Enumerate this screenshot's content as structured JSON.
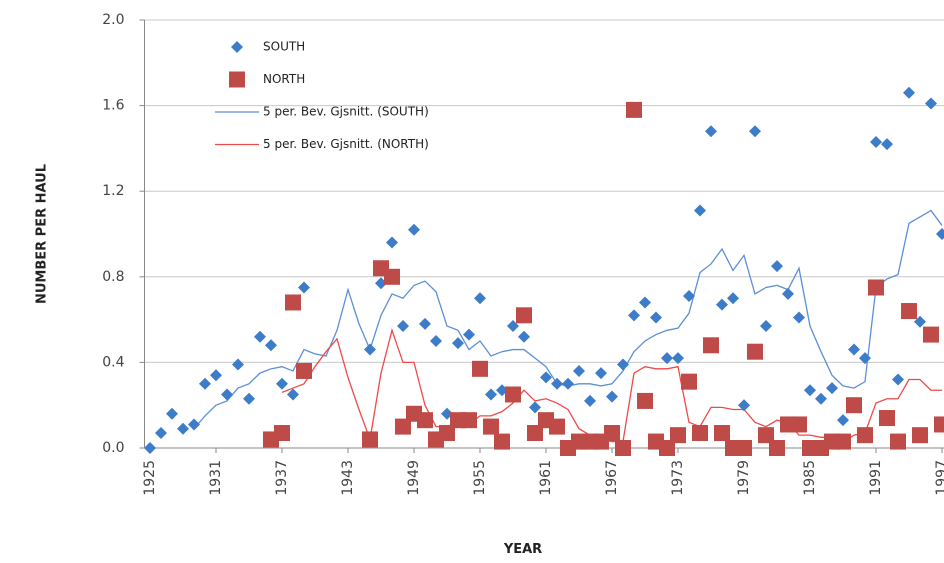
{
  "chart_data": {
    "type": "scatter",
    "x_label": "YEAR",
    "y_label": "NUMBER PER HAUL",
    "xlim": [
      1924.5,
      2000
    ],
    "ylim": [
      0,
      2
    ],
    "xticks": [
      1925,
      1931,
      1937,
      1943,
      1949,
      1955,
      1961,
      1967,
      1973,
      1979,
      1985,
      1991,
      1997
    ],
    "yticks": [
      {
        "value": 0,
        "label": "0.0"
      },
      0.4,
      0.8,
      1.2,
      1.6,
      {
        "value": 2,
        "label": "2.0"
      }
    ],
    "grid": true,
    "legend": "upper left",
    "series": [
      {
        "name": "SOUTH",
        "kind": "marker",
        "marker": "diamond",
        "color": "#3d7cc9",
        "x": [
          1925,
          1926,
          1927,
          1928,
          1929,
          1930,
          1931,
          1932,
          1933,
          1934,
          1935,
          1936,
          1937,
          1938,
          1939,
          1945,
          1946,
          1947,
          1948,
          1949,
          1950,
          1951,
          1952,
          1953,
          1954,
          1955,
          1956,
          1957,
          1958,
          1959,
          1960,
          1961,
          1962,
          1963,
          1964,
          1965,
          1966,
          1967,
          1968,
          1969,
          1970,
          1971,
          1972,
          1973,
          1974,
          1975,
          1976,
          1977,
          1978,
          1979,
          1980,
          1981,
          1982,
          1983,
          1984,
          1985,
          1986,
          1987,
          1988,
          1989,
          1990,
          1991,
          1992,
          1993,
          1994,
          1995,
          1996,
          1997
        ],
        "values": [
          0.0,
          0.07,
          0.16,
          0.09,
          0.11,
          0.3,
          0.34,
          0.25,
          0.39,
          0.23,
          0.52,
          0.48,
          0.3,
          0.25,
          0.75,
          0.46,
          0.77,
          0.96,
          0.57,
          1.02,
          0.58,
          0.5,
          0.16,
          0.49,
          0.53,
          0.7,
          0.25,
          0.27,
          0.57,
          0.52,
          0.19,
          0.33,
          0.3,
          0.3,
          0.36,
          0.22,
          0.35,
          0.24,
          0.39,
          0.62,
          0.68,
          0.61,
          0.42,
          0.42,
          0.71,
          1.11,
          1.48,
          0.67,
          0.7,
          0.2,
          1.48,
          0.57,
          0.85,
          0.72,
          0.61,
          0.27,
          0.23,
          0.28,
          0.13,
          0.46,
          0.42,
          1.43,
          1.42,
          0.32,
          1.66,
          0.59,
          1.61,
          1.0
        ]
      },
      {
        "name": "NORTH",
        "kind": "marker",
        "marker": "square",
        "color": "#be4b48",
        "x": [
          1936,
          1937,
          1938,
          1939,
          1945,
          1946,
          1947,
          1948,
          1949,
          1950,
          1951,
          1952,
          1953,
          1954,
          1955,
          1956,
          1957,
          1958,
          1959,
          1960,
          1961,
          1962,
          1963,
          1964,
          1965,
          1966,
          1967,
          1968,
          1969,
          1970,
          1971,
          1972,
          1973,
          1974,
          1975,
          1976,
          1977,
          1978,
          1979,
          1980,
          1981,
          1982,
          1983,
          1984,
          1985,
          1986,
          1987,
          1988,
          1989,
          1990,
          1991,
          1992,
          1993,
          1994,
          1995,
          1996,
          1997
        ],
        "values": [
          0.04,
          0.07,
          0.68,
          0.36,
          0.04,
          0.84,
          0.8,
          0.1,
          0.16,
          0.13,
          0.04,
          0.07,
          0.13,
          0.13,
          0.37,
          0.1,
          0.03,
          0.25,
          0.62,
          0.07,
          0.13,
          0.1,
          0.0,
          0.03,
          0.03,
          0.03,
          0.07,
          0.0,
          1.58,
          0.22,
          0.03,
          0.0,
          0.06,
          0.31,
          0.07,
          0.48,
          0.07,
          0.0,
          0.0,
          0.45,
          0.06,
          0.0,
          0.11,
          0.11,
          0.0,
          0.0,
          0.03,
          0.03,
          0.2,
          0.06,
          0.75,
          0.14,
          0.03,
          0.64,
          0.06,
          0.53,
          0.11
        ]
      },
      {
        "name": "5 per. Bev. Gjsnitt. (SOUTH)",
        "kind": "line",
        "color": "#5b8fd6",
        "x": [
          1929,
          1930,
          1931,
          1932,
          1933,
          1934,
          1935,
          1936,
          1937,
          1938,
          1939,
          1940,
          1941,
          1942,
          1943,
          1944,
          1945,
          1946,
          1947,
          1948,
          1949,
          1950,
          1951,
          1952,
          1953,
          1954,
          1955,
          1956,
          1957,
          1958,
          1959,
          1960,
          1961,
          1962,
          1963,
          1964,
          1965,
          1966,
          1967,
          1968,
          1969,
          1970,
          1971,
          1972,
          1973,
          1974,
          1975,
          1976,
          1977,
          1978,
          1979,
          1980,
          1981,
          1982,
          1983,
          1984,
          1985,
          1986,
          1987,
          1988,
          1989,
          1990,
          1991,
          1992,
          1993,
          1994,
          1995,
          1996,
          1997
        ],
        "values": [
          0.09,
          0.15,
          0.2,
          0.22,
          0.28,
          0.3,
          0.35,
          0.37,
          0.38,
          0.36,
          0.46,
          0.44,
          0.43,
          0.55,
          0.74,
          0.58,
          0.46,
          0.62,
          0.72,
          0.7,
          0.76,
          0.78,
          0.73,
          0.57,
          0.55,
          0.46,
          0.5,
          0.43,
          0.45,
          0.46,
          0.46,
          0.42,
          0.38,
          0.3,
          0.29,
          0.3,
          0.3,
          0.29,
          0.3,
          0.36,
          0.45,
          0.5,
          0.53,
          0.55,
          0.56,
          0.63,
          0.82,
          0.86,
          0.93,
          0.83,
          0.9,
          0.72,
          0.75,
          0.76,
          0.74,
          0.84,
          0.57,
          0.45,
          0.34,
          0.29,
          0.28,
          0.31,
          0.75,
          0.79,
          0.81,
          1.05,
          1.08,
          1.11,
          1.04
        ]
      },
      {
        "name": "5 per. Bev. Gjsnitt. (NORTH)",
        "kind": "line",
        "color": "#ee4a4a",
        "x": [
          1937,
          1938,
          1939,
          1940,
          1941,
          1942,
          1943,
          1944,
          1945,
          1946,
          1947,
          1948,
          1949,
          1950,
          1951,
          1952,
          1953,
          1954,
          1955,
          1956,
          1957,
          1958,
          1959,
          1960,
          1961,
          1962,
          1963,
          1964,
          1965,
          1966,
          1967,
          1968,
          1969,
          1970,
          1971,
          1972,
          1973,
          1974,
          1975,
          1976,
          1977,
          1978,
          1979,
          1980,
          1981,
          1982,
          1983,
          1984,
          1985,
          1986,
          1987,
          1988,
          1989,
          1990,
          1991,
          1992,
          1993,
          1994,
          1995,
          1996,
          1997
        ],
        "values": [
          0.26,
          0.28,
          0.3,
          0.38,
          0.45,
          0.51,
          0.33,
          0.18,
          0.04,
          0.35,
          0.55,
          0.4,
          0.4,
          0.2,
          0.1,
          0.1,
          0.12,
          0.11,
          0.15,
          0.15,
          0.17,
          0.21,
          0.27,
          0.22,
          0.23,
          0.21,
          0.18,
          0.09,
          0.06,
          0.04,
          0.03,
          0.03,
          0.35,
          0.38,
          0.37,
          0.37,
          0.38,
          0.12,
          0.1,
          0.19,
          0.19,
          0.18,
          0.18,
          0.12,
          0.1,
          0.13,
          0.12,
          0.06,
          0.06,
          0.05,
          0.05,
          0.03,
          0.06,
          0.07,
          0.21,
          0.23,
          0.23,
          0.32,
          0.32,
          0.27,
          0.27
        ]
      }
    ]
  }
}
